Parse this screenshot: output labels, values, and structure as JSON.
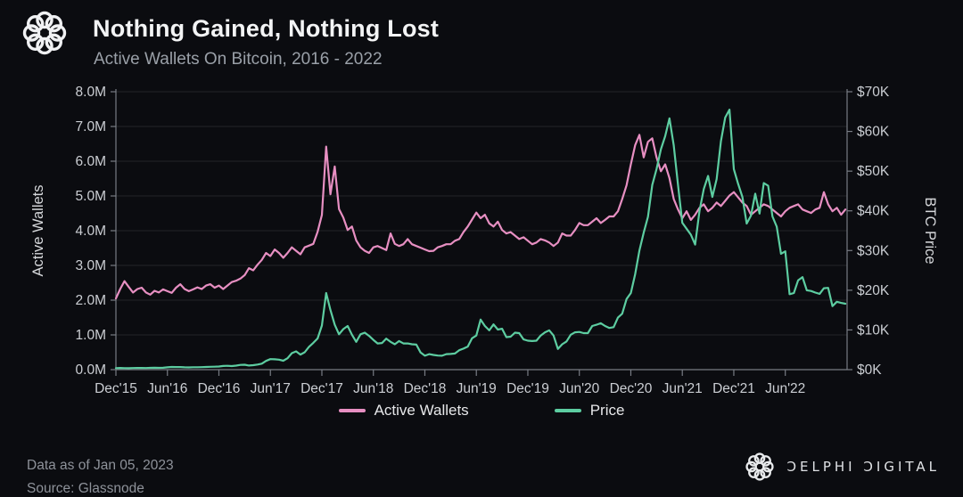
{
  "header": {
    "title": "Nothing Gained, Nothing Lost",
    "subtitle": "Active Wallets On Bitcoin, 2016 - 2022",
    "logo_icon": "delphi-knot-icon"
  },
  "legend": {
    "items": [
      {
        "label": "Active Wallets",
        "color": "#e78fc2"
      },
      {
        "label": "Price",
        "color": "#5dcda1"
      }
    ]
  },
  "footer": {
    "data_as_of": "Data as of Jan 05, 2023",
    "source_line": "Source: Glassnode",
    "brand_name": "ƆELPHI ƆIGITAL",
    "brand_icon": "delphi-knot-icon"
  },
  "colors": {
    "background": "#0b0c10",
    "wallets_line": "#e78fc2",
    "price_line": "#5dcda1",
    "gridline": "#232429",
    "axis_line": "#787c84",
    "tick_label": "#cbced3",
    "axis_title": "#d6d8db"
  },
  "chart_data": {
    "type": "line",
    "title": "Nothing Gained, Nothing Lost",
    "subtitle": "Active Wallets On Bitcoin, 2016 - 2022",
    "grid": "horizontal-only",
    "legend_position": "bottom-center",
    "x_unit": "months since Dec 2015",
    "x_step": 0.5,
    "x_max": 85.2,
    "left_axis": {
      "label": "Active Wallets",
      "range": [
        0,
        8
      ],
      "tick_values": [
        0,
        1,
        2,
        3,
        4,
        5,
        6,
        7,
        8
      ],
      "tick_labels": [
        "0.0M",
        "1.0M",
        "2.0M",
        "3.0M",
        "4.0M",
        "5.0M",
        "6.0M",
        "7.0M",
        "8.0M"
      ]
    },
    "right_axis": {
      "label": "BTC Price",
      "range": [
        0,
        70
      ],
      "tick_values": [
        0,
        10,
        20,
        30,
        40,
        50,
        60,
        70
      ],
      "tick_labels": [
        "$0K",
        "$10K",
        "$20K",
        "$30K",
        "$40K",
        "$50K",
        "$60K",
        "$70K"
      ]
    },
    "x_axis": {
      "tick_months": [
        0,
        6,
        12,
        18,
        24,
        30,
        36,
        42,
        48,
        54,
        60,
        66,
        72,
        78
      ],
      "tick_labels": [
        "Dec'15",
        "Jun'16",
        "Dec'16",
        "Jun'17",
        "Dec'17",
        "Jun'18",
        "Dec'18",
        "Jun'19",
        "Dec'19",
        "Jun'20",
        "Dec'20",
        "Jun'21",
        "Dec'21",
        "Jun'22"
      ]
    },
    "series": [
      {
        "name": "Active Wallets",
        "axis": "left",
        "unit": "millions of wallets",
        "color": "#e78fc2",
        "values": [
          2.05,
          2.32,
          2.55,
          2.38,
          2.22,
          2.32,
          2.36,
          2.22,
          2.16,
          2.27,
          2.22,
          2.31,
          2.26,
          2.21,
          2.36,
          2.46,
          2.32,
          2.26,
          2.31,
          2.37,
          2.32,
          2.42,
          2.46,
          2.36,
          2.42,
          2.32,
          2.42,
          2.52,
          2.56,
          2.62,
          2.72,
          2.92,
          2.86,
          3.02,
          3.16,
          3.36,
          3.27,
          3.46,
          3.36,
          3.22,
          3.36,
          3.52,
          3.42,
          3.32,
          3.52,
          3.57,
          3.62,
          3.97,
          4.45,
          6.42,
          5.05,
          5.85,
          4.62,
          4.38,
          4.02,
          4.12,
          3.72,
          3.52,
          3.42,
          3.36,
          3.52,
          3.56,
          3.5,
          3.44,
          3.92,
          3.62,
          3.56,
          3.61,
          3.76,
          3.61,
          3.56,
          3.51,
          3.46,
          3.41,
          3.42,
          3.52,
          3.56,
          3.61,
          3.61,
          3.71,
          3.76,
          3.96,
          4.12,
          4.32,
          4.52,
          4.36,
          4.46,
          4.21,
          4.12,
          4.26,
          4.02,
          3.92,
          3.96,
          3.86,
          3.76,
          3.81,
          3.71,
          3.61,
          3.66,
          3.76,
          3.72,
          3.66,
          3.56,
          3.66,
          3.92,
          3.86,
          3.86,
          4.02,
          4.22,
          4.16,
          4.16,
          4.26,
          4.36,
          4.22,
          4.31,
          4.41,
          4.41,
          4.56,
          4.91,
          5.31,
          5.91,
          6.46,
          6.76,
          6.11,
          6.56,
          6.66,
          6.11,
          5.71,
          5.91,
          5.51,
          4.91,
          4.61,
          4.36,
          4.56,
          4.31,
          4.46,
          4.66,
          4.76,
          4.56,
          4.66,
          4.81,
          4.71,
          4.86,
          5.01,
          5.11,
          4.96,
          4.81,
          4.71,
          4.46,
          4.56,
          4.66,
          4.76,
          4.71,
          4.61,
          4.51,
          4.41,
          4.56,
          4.66,
          4.71,
          4.76,
          4.61,
          4.56,
          4.51,
          4.61,
          4.66,
          5.11,
          4.76,
          4.56,
          4.66,
          4.46,
          4.61
        ]
      },
      {
        "name": "Price",
        "axis": "right",
        "unit": "USD thousands",
        "color": "#5dcda1",
        "values": [
          0.38,
          0.42,
          0.38,
          0.37,
          0.4,
          0.43,
          0.42,
          0.41,
          0.44,
          0.46,
          0.45,
          0.48,
          0.59,
          0.68,
          0.66,
          0.65,
          0.58,
          0.57,
          0.6,
          0.61,
          0.63,
          0.68,
          0.72,
          0.74,
          0.79,
          0.93,
          0.96,
          0.89,
          1.0,
          1.18,
          1.23,
          1.03,
          1.13,
          1.29,
          1.5,
          2.2,
          2.65,
          2.6,
          2.52,
          2.24,
          2.87,
          4.16,
          4.6,
          3.8,
          4.37,
          5.75,
          6.75,
          7.85,
          11.1,
          19.3,
          15.0,
          11.3,
          8.9,
          10.2,
          11.0,
          8.8,
          7.0,
          8.9,
          9.3,
          8.5,
          7.5,
          6.6,
          6.7,
          7.8,
          7.0,
          6.4,
          7.2,
          6.6,
          6.6,
          6.4,
          6.3,
          4.3,
          3.5,
          3.9,
          3.7,
          3.55,
          3.5,
          3.9,
          3.95,
          4.05,
          4.9,
          5.3,
          5.8,
          7.9,
          8.6,
          12.6,
          11.0,
          9.9,
          11.4,
          10.1,
          10.3,
          8.2,
          8.3,
          9.3,
          9.2,
          7.6,
          7.3,
          7.2,
          7.3,
          8.6,
          9.4,
          9.9,
          8.6,
          5.2,
          6.4,
          7.1,
          8.8,
          9.4,
          9.5,
          9.2,
          9.2,
          11.0,
          11.3,
          11.7,
          11.0,
          10.5,
          10.7,
          13.1,
          14.1,
          17.8,
          19.3,
          24.0,
          30.0,
          34.5,
          38.5,
          46.5,
          50.5,
          55.5,
          58.8,
          63.3,
          56.5,
          46.5,
          37.0,
          35.5,
          34.0,
          31.5,
          40.0,
          45.5,
          48.8,
          43.5,
          48.0,
          57.5,
          63.5,
          65.5,
          50.5,
          46.8,
          43.5,
          36.8,
          38.8,
          44.3,
          39.3,
          47.0,
          46.3,
          38.6,
          36.0,
          29.2,
          29.8,
          19.0,
          19.3,
          22.5,
          23.3,
          20.0,
          19.8,
          19.4,
          19.1,
          20.5,
          20.6,
          16.0,
          17.1,
          16.8,
          16.6
        ]
      }
    ]
  }
}
